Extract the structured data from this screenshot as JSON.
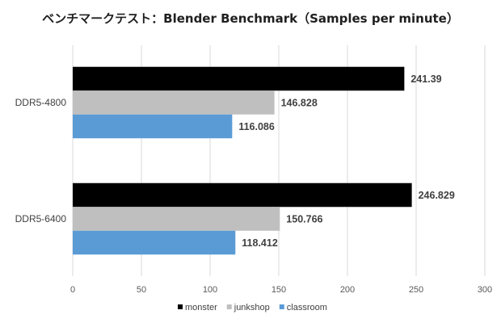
{
  "chart_data": {
    "type": "bar",
    "orientation": "horizontal",
    "title": "ベンチマークテスト：Blender Benchmark（Samples per minute）",
    "xlabel": "",
    "ylabel": "",
    "xlim": [
      0,
      300
    ],
    "x_ticks": [
      "0",
      "50",
      "100",
      "150",
      "200",
      "250",
      "300"
    ],
    "categories": [
      "DDR5-4800",
      "DDR5-6400"
    ],
    "series": [
      {
        "name": "monster",
        "color": "#000000",
        "values": [
          241.39,
          246.829
        ],
        "labels": [
          "241.39",
          "246.829"
        ]
      },
      {
        "name": "junkshop",
        "color": "#bfbfbf",
        "values": [
          146.828,
          150.766
        ],
        "labels": [
          "146.828",
          "150.766"
        ]
      },
      {
        "name": "classroom",
        "color": "#5b9bd5",
        "values": [
          116.086,
          118.412
        ],
        "labels": [
          "116.086",
          "118.412"
        ]
      }
    ],
    "grid": true,
    "legend_position": "bottom",
    "data_labels": true
  }
}
